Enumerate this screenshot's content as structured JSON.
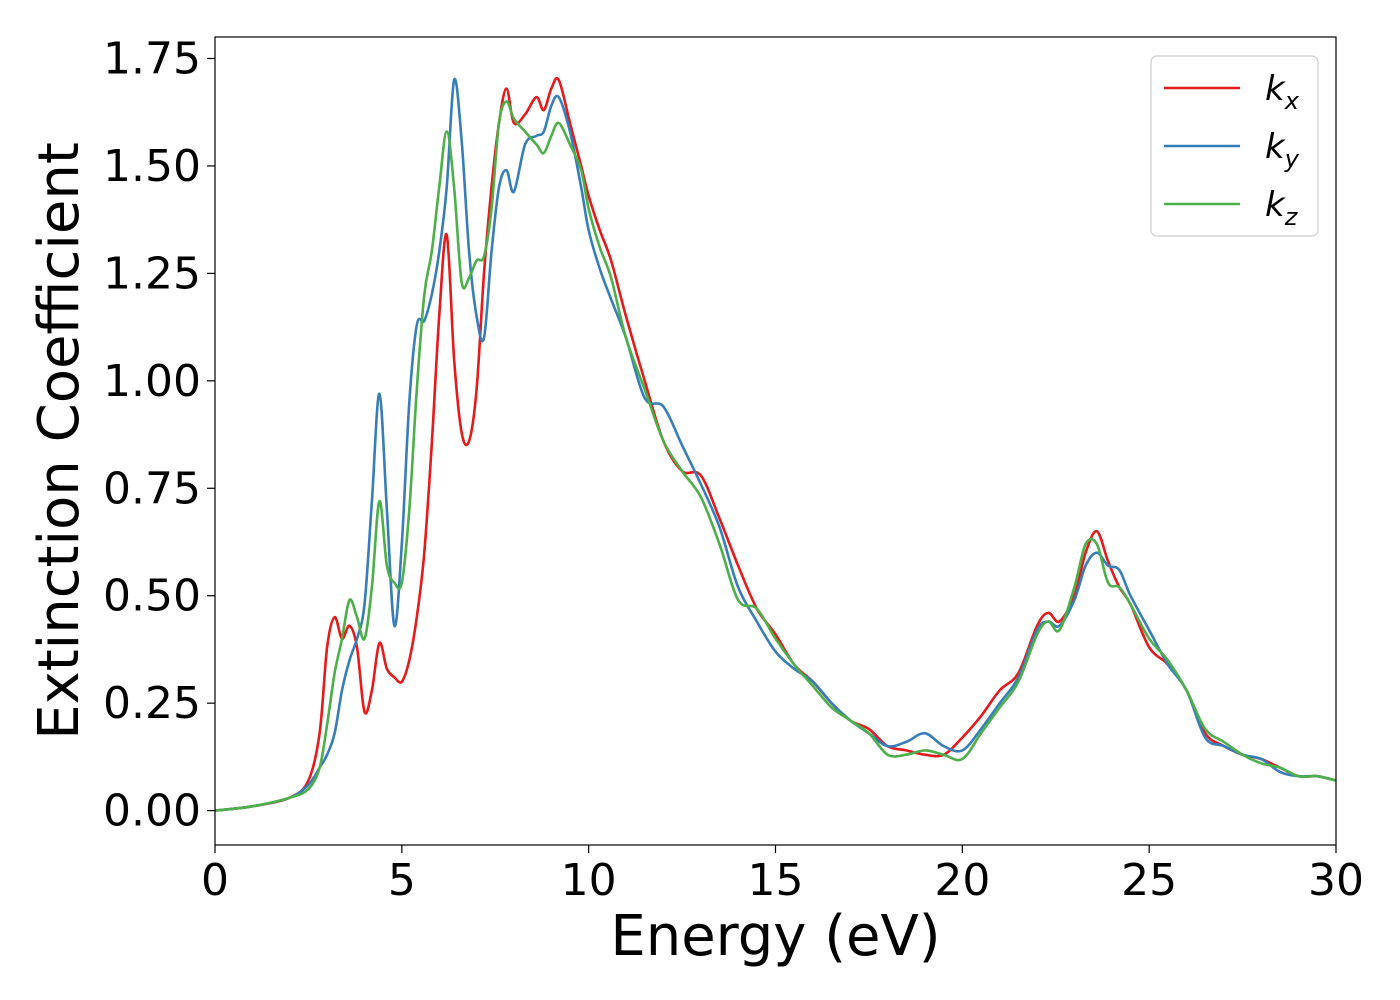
{
  "chart_data": {
    "type": "line",
    "xlabel": "Energy (eV)",
    "ylabel": "Extinction Coefficient",
    "xlim": [
      0,
      30
    ],
    "ylim": [
      -0.08,
      1.8
    ],
    "xticks": [
      0,
      5,
      10,
      15,
      20,
      25,
      30
    ],
    "xtick_labels": [
      "0",
      "5",
      "10",
      "15",
      "20",
      "25",
      "30"
    ],
    "yticks": [
      0,
      0.25,
      0.5,
      0.75,
      1.0,
      1.25,
      1.5,
      1.75
    ],
    "ytick_labels": [
      "0.00",
      "0.25",
      "0.50",
      "0.75",
      "1.00",
      "1.25",
      "1.50",
      "1.75"
    ],
    "grid": false,
    "legend_position": "top-right",
    "series": [
      {
        "name": "kx",
        "base": "k",
        "sub": "x",
        "color": "#e41a1c",
        "x": [
          0,
          1,
          2,
          2.5,
          2.8,
          3.0,
          3.2,
          3.4,
          3.6,
          3.8,
          4.0,
          4.2,
          4.4,
          4.6,
          4.8,
          5.0,
          5.2,
          5.4,
          5.6,
          5.8,
          6.0,
          6.2,
          6.4,
          6.6,
          6.8,
          7.0,
          7.2,
          7.4,
          7.6,
          7.8,
          8.0,
          8.3,
          8.6,
          8.8,
          9.0,
          9.2,
          9.5,
          9.8,
          10.0,
          10.3,
          10.6,
          11.0,
          11.5,
          12.0,
          12.5,
          13.0,
          13.5,
          14.0,
          14.5,
          15.0,
          15.5,
          16.0,
          16.5,
          17.0,
          17.5,
          18.0,
          18.5,
          19.0,
          19.5,
          20.0,
          20.5,
          21.0,
          21.5,
          22.0,
          22.3,
          22.6,
          23.0,
          23.3,
          23.6,
          23.9,
          24.2,
          24.5,
          25.0,
          25.5,
          26.0,
          26.5,
          27.0,
          27.5,
          28.0,
          28.5,
          29.0,
          29.5,
          30.0
        ],
        "y": [
          0.0,
          0.01,
          0.03,
          0.07,
          0.18,
          0.38,
          0.45,
          0.4,
          0.43,
          0.38,
          0.23,
          0.28,
          0.39,
          0.33,
          0.31,
          0.3,
          0.35,
          0.45,
          0.6,
          0.85,
          1.15,
          1.34,
          1.05,
          0.88,
          0.86,
          0.98,
          1.25,
          1.45,
          1.6,
          1.68,
          1.6,
          1.62,
          1.66,
          1.63,
          1.68,
          1.7,
          1.6,
          1.5,
          1.43,
          1.35,
          1.28,
          1.15,
          1.0,
          0.86,
          0.79,
          0.78,
          0.68,
          0.57,
          0.47,
          0.41,
          0.34,
          0.3,
          0.25,
          0.21,
          0.19,
          0.15,
          0.14,
          0.13,
          0.13,
          0.17,
          0.22,
          0.28,
          0.32,
          0.43,
          0.46,
          0.44,
          0.5,
          0.6,
          0.65,
          0.58,
          0.52,
          0.48,
          0.38,
          0.34,
          0.28,
          0.18,
          0.15,
          0.13,
          0.12,
          0.1,
          0.08,
          0.08,
          0.07
        ]
      },
      {
        "name": "ky",
        "base": "k",
        "sub": "y",
        "color": "#377eb8",
        "x": [
          0,
          1,
          2,
          2.5,
          2.8,
          3.0,
          3.2,
          3.4,
          3.6,
          3.8,
          4.0,
          4.2,
          4.4,
          4.6,
          4.8,
          5.0,
          5.2,
          5.4,
          5.6,
          5.8,
          6.0,
          6.2,
          6.4,
          6.6,
          6.8,
          7.0,
          7.2,
          7.4,
          7.6,
          7.8,
          8.0,
          8.3,
          8.6,
          8.8,
          9.0,
          9.2,
          9.5,
          9.8,
          10.0,
          10.3,
          10.6,
          11.0,
          11.5,
          12.0,
          12.5,
          13.0,
          13.5,
          14.0,
          14.5,
          15.0,
          15.5,
          16.0,
          16.5,
          17.0,
          17.5,
          18.0,
          18.5,
          19.0,
          19.5,
          20.0,
          20.5,
          21.0,
          21.5,
          22.0,
          22.3,
          22.6,
          23.0,
          23.3,
          23.6,
          23.9,
          24.2,
          24.5,
          25.0,
          25.5,
          26.0,
          26.5,
          27.0,
          27.5,
          28.0,
          28.5,
          29.0,
          29.5,
          30.0
        ],
        "y": [
          0.0,
          0.01,
          0.03,
          0.06,
          0.1,
          0.13,
          0.18,
          0.28,
          0.35,
          0.4,
          0.48,
          0.72,
          0.97,
          0.7,
          0.43,
          0.62,
          0.95,
          1.13,
          1.14,
          1.2,
          1.3,
          1.45,
          1.7,
          1.56,
          1.3,
          1.15,
          1.1,
          1.3,
          1.45,
          1.49,
          1.44,
          1.55,
          1.57,
          1.58,
          1.64,
          1.66,
          1.58,
          1.45,
          1.35,
          1.26,
          1.19,
          1.1,
          0.96,
          0.94,
          0.85,
          0.76,
          0.66,
          0.52,
          0.44,
          0.37,
          0.33,
          0.3,
          0.25,
          0.21,
          0.18,
          0.15,
          0.16,
          0.18,
          0.15,
          0.14,
          0.19,
          0.25,
          0.31,
          0.42,
          0.44,
          0.43,
          0.49,
          0.57,
          0.6,
          0.57,
          0.56,
          0.5,
          0.42,
          0.34,
          0.28,
          0.17,
          0.15,
          0.13,
          0.12,
          0.09,
          0.08,
          0.08,
          0.07
        ]
      },
      {
        "name": "kz",
        "base": "k",
        "sub": "z",
        "color": "#4daf4a",
        "x": [
          0,
          1,
          2,
          2.5,
          2.8,
          3.0,
          3.2,
          3.4,
          3.6,
          3.8,
          4.0,
          4.2,
          4.4,
          4.6,
          4.8,
          5.0,
          5.2,
          5.4,
          5.6,
          5.8,
          6.0,
          6.2,
          6.4,
          6.6,
          6.8,
          7.0,
          7.2,
          7.4,
          7.6,
          7.8,
          8.0,
          8.3,
          8.6,
          8.8,
          9.0,
          9.2,
          9.5,
          9.8,
          10.0,
          10.3,
          10.6,
          11.0,
          11.5,
          12.0,
          12.5,
          13.0,
          13.5,
          14.0,
          14.5,
          15.0,
          15.5,
          16.0,
          16.5,
          17.0,
          17.5,
          18.0,
          18.5,
          19.0,
          19.5,
          20.0,
          20.5,
          21.0,
          21.5,
          22.0,
          22.3,
          22.6,
          23.0,
          23.3,
          23.6,
          23.9,
          24.2,
          24.5,
          25.0,
          25.5,
          26.0,
          26.5,
          27.0,
          27.5,
          28.0,
          28.5,
          29.0,
          29.5,
          30.0
        ],
        "y": [
          0.0,
          0.01,
          0.03,
          0.05,
          0.1,
          0.2,
          0.32,
          0.4,
          0.49,
          0.45,
          0.4,
          0.52,
          0.72,
          0.57,
          0.53,
          0.53,
          0.7,
          0.98,
          1.2,
          1.3,
          1.45,
          1.58,
          1.45,
          1.23,
          1.24,
          1.28,
          1.29,
          1.4,
          1.6,
          1.65,
          1.61,
          1.58,
          1.55,
          1.53,
          1.57,
          1.6,
          1.55,
          1.49,
          1.4,
          1.31,
          1.24,
          1.1,
          0.98,
          0.86,
          0.79,
          0.73,
          0.62,
          0.49,
          0.47,
          0.4,
          0.34,
          0.29,
          0.24,
          0.21,
          0.18,
          0.13,
          0.13,
          0.14,
          0.13,
          0.12,
          0.18,
          0.24,
          0.3,
          0.41,
          0.44,
          0.42,
          0.52,
          0.62,
          0.62,
          0.53,
          0.52,
          0.48,
          0.4,
          0.35,
          0.28,
          0.19,
          0.16,
          0.13,
          0.11,
          0.1,
          0.08,
          0.08,
          0.07
        ]
      }
    ]
  }
}
